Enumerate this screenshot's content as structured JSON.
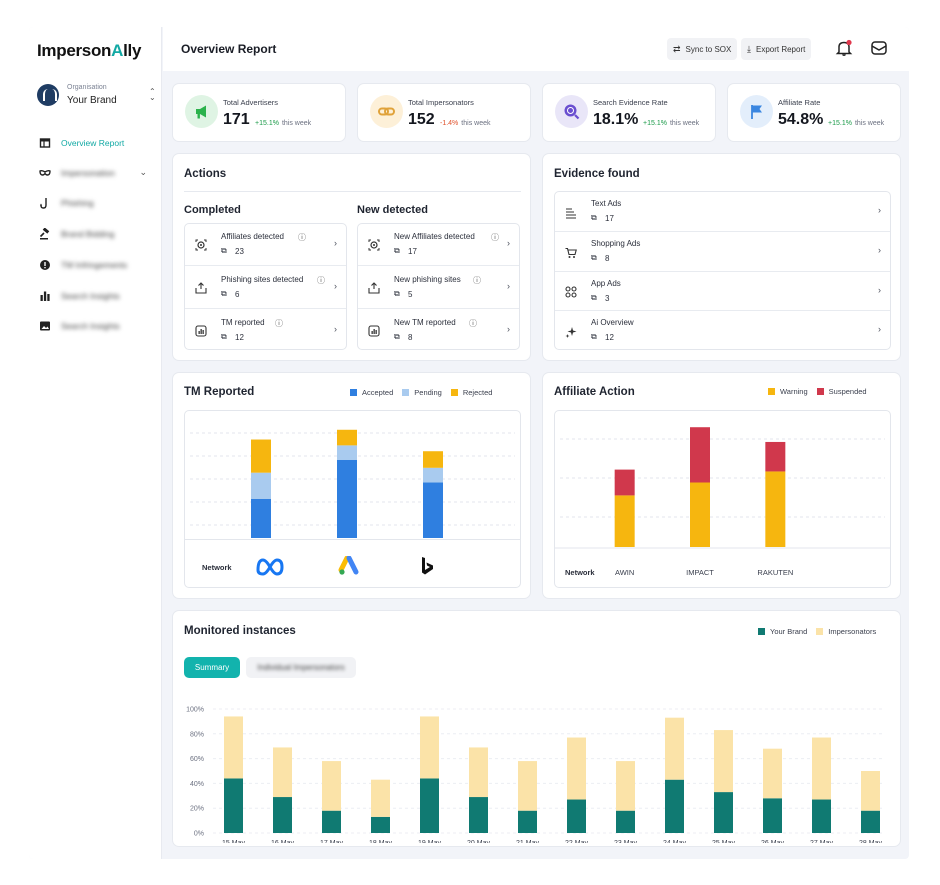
{
  "app": {
    "logo_prefix": "Imperson",
    "logo_highlight": "A",
    "logo_suffix": "lly"
  },
  "org": {
    "label": "Organisation",
    "name": "Your Brand"
  },
  "sidebar": {
    "items": [
      {
        "label": "Overview Report",
        "icon": "dashboard-icon",
        "active": true
      },
      {
        "label": "Impersonation",
        "icon": "mask-icon",
        "blurred": true,
        "has_chevron": true
      },
      {
        "label": "Phishing",
        "icon": "hook-icon",
        "blurred": true
      },
      {
        "label": "Brand Bidding",
        "icon": "gavel-icon",
        "blurred": true
      },
      {
        "label": "TM Infringements",
        "icon": "alert-icon",
        "blurred": true
      },
      {
        "label": "Search Insights",
        "icon": "bar-chart-icon",
        "blurred": true
      },
      {
        "label": "Search Insights",
        "icon": "image-icon",
        "blurred": true
      }
    ]
  },
  "header": {
    "title": "Overview Report",
    "sync_label": "Sync to SOX",
    "export_label": "Export Report"
  },
  "stats": [
    {
      "title": "Total Advertisers",
      "value": "171",
      "delta": "+15.1%",
      "trend": "up",
      "period": "this week",
      "icon": "megaphone-icon",
      "bg": "#dff4e4",
      "fg": "#2bb24c"
    },
    {
      "title": "Total Impersonators",
      "value": "152",
      "delta": "-1.4%",
      "trend": "down",
      "period": "this week",
      "icon": "link-icon",
      "bg": "#fdf0d8",
      "fg": "#e0a23a"
    },
    {
      "title": "Search Evidence Rate",
      "value": "18.1%",
      "delta": "+15.1%",
      "trend": "up",
      "period": "this week",
      "icon": "search-globe-icon",
      "bg": "#e9e6f8",
      "fg": "#6a4fd0"
    },
    {
      "title": "Affiliate Rate",
      "value": "54.8%",
      "delta": "+15.1%",
      "trend": "up",
      "period": "this week",
      "icon": "flag-icon",
      "bg": "#e3eefb",
      "fg": "#3a86e0"
    }
  ],
  "actions": {
    "title": "Actions",
    "completed_title": "Completed",
    "new_title": "New detected",
    "completed": [
      {
        "label": "Affiliates detected",
        "count": "23",
        "icon": "target-icon"
      },
      {
        "label": "Phishing sites detected",
        "count": "6",
        "icon": "upload-box-icon"
      },
      {
        "label": "TM reported",
        "count": "12",
        "icon": "report-icon"
      }
    ],
    "new_detected": [
      {
        "label": "New Affiliates detected",
        "count": "17",
        "icon": "target-icon"
      },
      {
        "label": "New phishing sites",
        "count": "5",
        "icon": "upload-box-icon"
      },
      {
        "label": "New TM reported",
        "count": "8",
        "icon": "report-icon"
      }
    ]
  },
  "evidence": {
    "title": "Evidence found",
    "items": [
      {
        "label": "Text Ads",
        "count": "17",
        "icon": "text-lines-icon"
      },
      {
        "label": "Shopping Ads",
        "count": "8",
        "icon": "cart-icon"
      },
      {
        "label": "App Ads",
        "count": "3",
        "icon": "apps-grid-icon"
      },
      {
        "label": "Ai Overview",
        "count": "12",
        "icon": "sparkle-icon"
      }
    ]
  },
  "tm_reported": {
    "title": "TM Reported",
    "network_label": "Network",
    "network_icons": [
      "meta-logo-icon",
      "google-ads-logo-icon",
      "bing-logo-icon"
    ]
  },
  "affiliate_action": {
    "title": "Affiliate Action",
    "network_label": "Network"
  },
  "monitored": {
    "title": "Monitored instances",
    "tabs": [
      {
        "label": "Summary",
        "active": true
      },
      {
        "label": "Individual Impersonators",
        "active": false
      }
    ]
  },
  "colors": {
    "accent": "#12a9a4",
    "accepted": "#2f7fe0",
    "pending": "#a9cbef",
    "rejected": "#f6b60f",
    "warning": "#f6b60f",
    "suspended": "#d0384c",
    "your_brand": "#107a72",
    "impersonators": "#fbe3a8"
  },
  "chart_data": [
    {
      "type": "bar",
      "stacked": true,
      "title": "TM Reported",
      "categories": [
        "Meta",
        "Google Ads",
        "Bing"
      ],
      "series": [
        {
          "name": "Accepted",
          "values": [
            40,
            80,
            57
          ]
        },
        {
          "name": "Pending",
          "values": [
            27,
            15,
            15
          ]
        },
        {
          "name": "Rejected",
          "values": [
            34,
            16,
            17
          ]
        }
      ],
      "ylim": [
        0,
        120
      ],
      "grid": true,
      "legend": "top-right"
    },
    {
      "type": "bar",
      "stacked": true,
      "title": "Affiliate Action",
      "categories": [
        "AWIN",
        "IMPACT",
        "RAKUTEN"
      ],
      "xlabel": "Network",
      "series": [
        {
          "name": "Warning",
          "values": [
            56,
            70,
            82
          ]
        },
        {
          "name": "Suspended",
          "values": [
            28,
            60,
            32
          ]
        }
      ],
      "ylim": [
        0,
        140
      ],
      "grid": true,
      "legend": "top-right"
    },
    {
      "type": "bar",
      "stacked": true,
      "title": "Monitored instances",
      "categories": [
        "15 May",
        "16 May",
        "17 May",
        "18 May",
        "19 May",
        "20 May",
        "21 May",
        "22 May",
        "23 May",
        "24 May",
        "25 May",
        "26 May",
        "27 May",
        "28 May"
      ],
      "series": [
        {
          "name": "Your Brand",
          "values": [
            44,
            29,
            18,
            13,
            44,
            29,
            18,
            27,
            18,
            43,
            33,
            28,
            27,
            18
          ]
        },
        {
          "name": "Impersonators",
          "values": [
            50,
            40,
            40,
            30,
            50,
            40,
            40,
            50,
            40,
            50,
            50,
            40,
            50,
            32
          ]
        }
      ],
      "yticks": [
        "0%",
        "20%",
        "40%",
        "60%",
        "80%",
        "100%"
      ],
      "ylim": [
        0,
        100
      ],
      "grid": true,
      "legend": "top-right"
    }
  ]
}
